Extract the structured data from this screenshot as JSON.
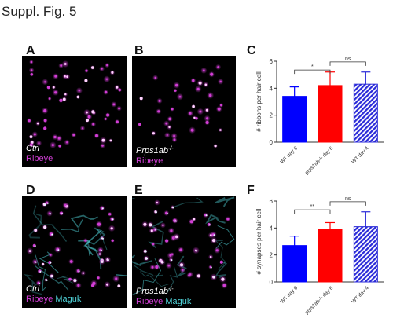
{
  "figure": {
    "title": "Suppl. Fig. 5"
  },
  "panels": {
    "A": {
      "label": "A",
      "genotype": "Ctrl",
      "stains": [
        "Ribeye"
      ]
    },
    "B": {
      "label": "B",
      "genotype": "Prps1ab",
      "genotype_sup": "-/-",
      "stains": [
        "Ribeye"
      ]
    },
    "D": {
      "label": "D",
      "genotype": "Ctrl",
      "stains": [
        "Ribeye",
        "Maguk"
      ]
    },
    "E": {
      "label": "E",
      "genotype": "Prps1ab",
      "genotype_sup": "-/-",
      "stains": [
        "Ribeye",
        "Maguk"
      ]
    },
    "C": {
      "label": "C"
    },
    "F": {
      "label": "F"
    }
  },
  "colors": {
    "ribeye": "#d23ed6",
    "maguk": "#4fd0d6",
    "wt_bar": "#0000ff",
    "mutant_bar": "#ff0000",
    "hatched_bar": "#2a2ad8"
  },
  "chart_data": [
    {
      "panel": "C",
      "type": "bar",
      "categories": [
        "WT day 6",
        "prps1ab-/- day 6",
        "WT day 4"
      ],
      "values": [
        3.4,
        4.2,
        4.3
      ],
      "errors": [
        0.7,
        1.0,
        0.9
      ],
      "ylabel": "# ribbons per hair cell",
      "ylim": [
        0,
        6
      ],
      "yticks": [
        0,
        2,
        4,
        6
      ],
      "bar_styles": [
        "solid-blue",
        "solid-red",
        "hatched-blue"
      ],
      "significance": [
        {
          "from": 0,
          "to": 1,
          "label": "*"
        },
        {
          "from": 1,
          "to": 2,
          "label": "ns"
        }
      ]
    },
    {
      "panel": "F",
      "type": "bar",
      "categories": [
        "WT day 6",
        "prps1ab-/- day 6",
        "WT day 4"
      ],
      "values": [
        2.7,
        3.9,
        4.1
      ],
      "errors": [
        0.7,
        0.5,
        1.1
      ],
      "ylabel": "# synapses per hair cell",
      "ylim": [
        0,
        6
      ],
      "yticks": [
        0,
        2,
        4,
        6
      ],
      "bar_styles": [
        "solid-blue",
        "solid-red",
        "hatched-blue"
      ],
      "significance": [
        {
          "from": 0,
          "to": 1,
          "label": "**"
        },
        {
          "from": 1,
          "to": 2,
          "label": "ns"
        }
      ]
    }
  ]
}
